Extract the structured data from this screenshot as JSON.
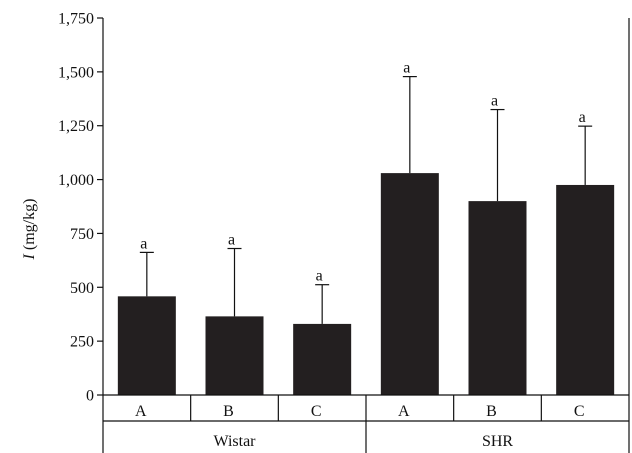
{
  "chart_data": {
    "type": "bar",
    "ylabel_italic": "I",
    "ylabel_rest": " (mg/kg)",
    "ylim": [
      0,
      1750
    ],
    "yticks": [
      "0",
      "250",
      "500",
      "750",
      "1,000",
      "1,250",
      "1,500",
      "1,750"
    ],
    "ytick_values": [
      0,
      250,
      500,
      750,
      1000,
      1250,
      1500,
      1750
    ],
    "groups": [
      {
        "label": "Wistar",
        "categories": [
          "A",
          "B",
          "C"
        ]
      },
      {
        "label": "SHR",
        "categories": [
          "A",
          "B",
          "C"
        ]
      }
    ],
    "bars": [
      {
        "group": "Wistar",
        "category": "A",
        "value": 458,
        "error_upper": 662,
        "sig": "a"
      },
      {
        "group": "Wistar",
        "category": "B",
        "value": 365,
        "error_upper": 680,
        "sig": "a"
      },
      {
        "group": "Wistar",
        "category": "C",
        "value": 330,
        "error_upper": 512,
        "sig": "a"
      },
      {
        "group": "SHR",
        "category": "A",
        "value": 1030,
        "error_upper": 1478,
        "sig": "a"
      },
      {
        "group": "SHR",
        "category": "B",
        "value": 900,
        "error_upper": 1325,
        "sig": "a"
      },
      {
        "group": "SHR",
        "category": "C",
        "value": 975,
        "error_upper": 1248,
        "sig": "a"
      }
    ],
    "bar_color": "#231f20",
    "grid": false
  }
}
